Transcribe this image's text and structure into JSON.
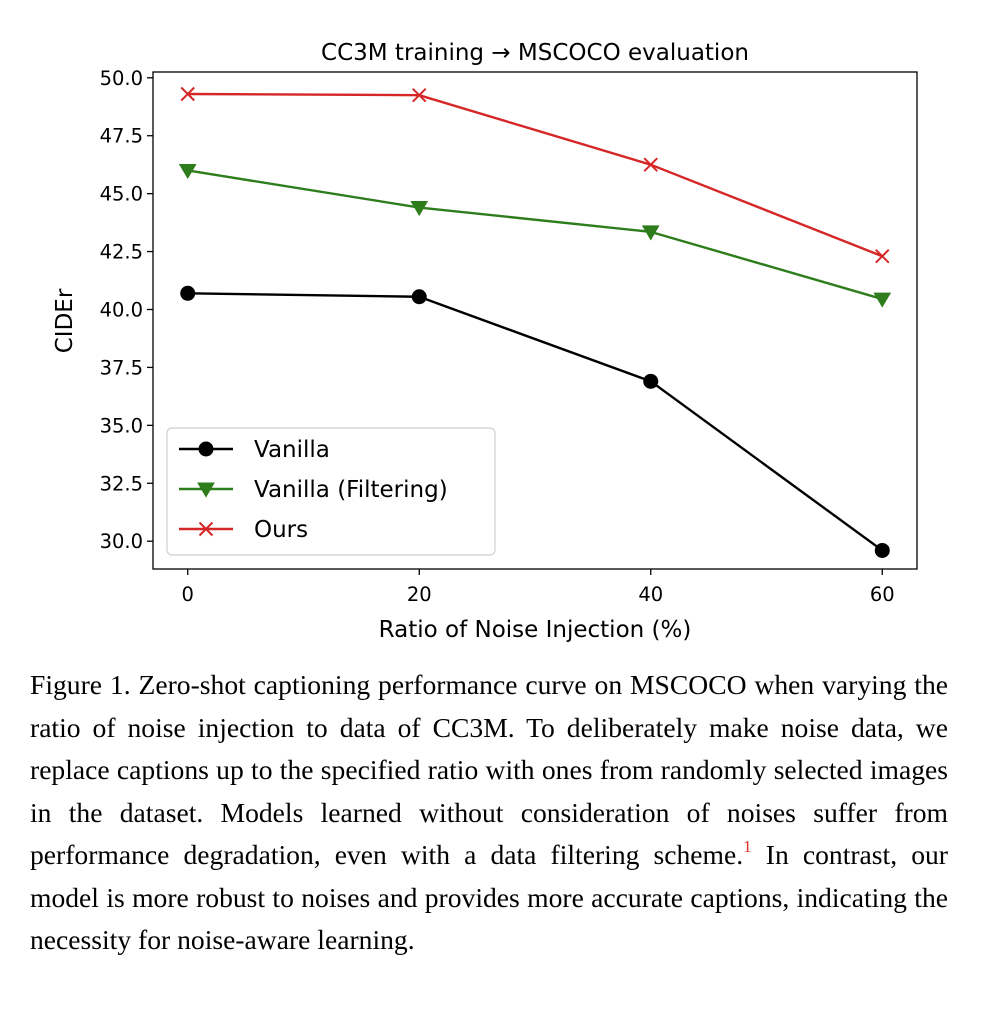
{
  "chart_data": {
    "type": "line",
    "title": "CC3M training → MSCOCO evaluation",
    "xlabel": "Ratio of Noise Injection (%)",
    "ylabel": "CIDEr",
    "x": [
      0,
      20,
      40,
      60
    ],
    "x_ticks": [
      "0",
      "20",
      "40",
      "60"
    ],
    "xlim": [
      -3,
      63
    ],
    "ylim": [
      28.8,
      50.25
    ],
    "y_ticks": [
      "30.0",
      "32.5",
      "35.0",
      "37.5",
      "40.0",
      "42.5",
      "45.0",
      "47.5",
      "50.0"
    ],
    "grid": false,
    "legend_position": "lower-left",
    "series": [
      {
        "name": "Vanilla",
        "values": [
          40.7,
          40.55,
          36.9,
          29.6
        ],
        "color": "#000000",
        "marker": "circle"
      },
      {
        "name": "Vanilla (Filtering)",
        "values": [
          46.0,
          44.4,
          43.35,
          40.45
        ],
        "color": "#2e7d1c",
        "marker": "triangle-down"
      },
      {
        "name": "Ours",
        "values": [
          49.3,
          49.25,
          46.25,
          42.3
        ],
        "color": "#d62728",
        "marker": "x"
      }
    ]
  },
  "caption": {
    "text": "Figure 1. Zero-shot captioning performance curve on MSCOCO when varying the ratio of noise injection to data of CC3M. To deliberately make noise data, we replace captions up to the specified ratio with ones from randomly selected images in the dataset. Models learned without consideration of noises suffer from performance degradation, even with a data filtering scheme.",
    "footnote_marker": "1",
    "text_after": " In contrast, our model is more robust to noises and provides more accurate captions, indicating the necessity for noise-aware learning."
  }
}
